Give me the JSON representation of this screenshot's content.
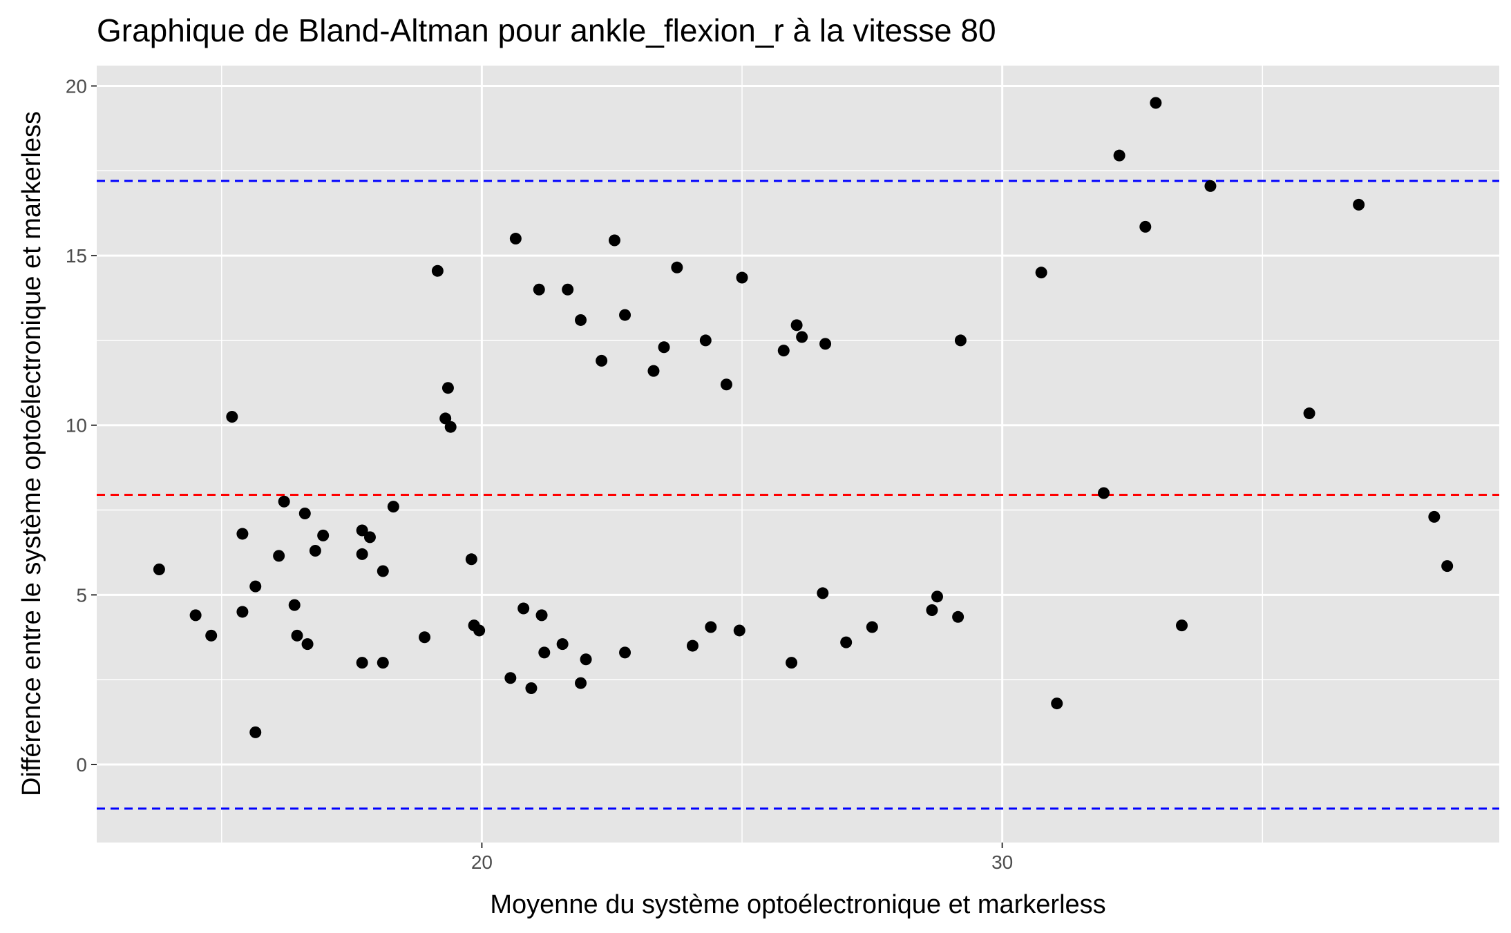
{
  "chart_data": {
    "type": "scatter",
    "title": "Graphique de Bland-Altman pour ankle_flexion_r à la vitesse 80",
    "xlabel": "Moyenne du système optoélectronique et markerless",
    "ylabel": "Différence entre le système optoélectronique et markerless",
    "xlim": [
      12.6,
      39.55
    ],
    "ylim": [
      -2.3,
      20.6
    ],
    "x_ticks": [
      20,
      30
    ],
    "x_tick_labels": [
      "20",
      "30"
    ],
    "y_ticks": [
      0,
      5,
      10,
      15,
      20
    ],
    "y_tick_labels": [
      "0",
      "5",
      "10",
      "15",
      "20"
    ],
    "grid": true,
    "legend": "none",
    "colors": {
      "panel": "#e5e5e5",
      "grid": "#ffffff",
      "points": "#000000",
      "mean_line": "#ff0000",
      "limit_lines": "#0000ff"
    },
    "mean_difference": 7.95,
    "limits_of_agreement": [
      17.2,
      -1.3
    ],
    "points": [
      {
        "x": 13.8,
        "y": 5.75
      },
      {
        "x": 14.5,
        "y": 4.4
      },
      {
        "x": 14.8,
        "y": 3.8
      },
      {
        "x": 15.2,
        "y": 10.25
      },
      {
        "x": 15.4,
        "y": 6.8
      },
      {
        "x": 15.4,
        "y": 4.5
      },
      {
        "x": 15.65,
        "y": 5.25
      },
      {
        "x": 15.65,
        "y": 0.95
      },
      {
        "x": 16.1,
        "y": 6.15
      },
      {
        "x": 16.2,
        "y": 7.75
      },
      {
        "x": 16.4,
        "y": 4.7
      },
      {
        "x": 16.45,
        "y": 3.8
      },
      {
        "x": 16.6,
        "y": 7.4
      },
      {
        "x": 16.65,
        "y": 3.55
      },
      {
        "x": 16.8,
        "y": 6.3
      },
      {
        "x": 16.95,
        "y": 6.75
      },
      {
        "x": 17.7,
        "y": 6.9
      },
      {
        "x": 17.7,
        "y": 6.2
      },
      {
        "x": 17.7,
        "y": 3.0
      },
      {
        "x": 17.85,
        "y": 6.7
      },
      {
        "x": 18.1,
        "y": 5.7
      },
      {
        "x": 18.1,
        "y": 3.0
      },
      {
        "x": 18.3,
        "y": 7.6
      },
      {
        "x": 18.9,
        "y": 3.75
      },
      {
        "x": 19.15,
        "y": 14.55
      },
      {
        "x": 19.3,
        "y": 10.2
      },
      {
        "x": 19.35,
        "y": 11.1
      },
      {
        "x": 19.4,
        "y": 9.95
      },
      {
        "x": 19.8,
        "y": 6.05
      },
      {
        "x": 19.85,
        "y": 4.1
      },
      {
        "x": 19.95,
        "y": 3.95
      },
      {
        "x": 20.55,
        "y": 2.55
      },
      {
        "x": 20.65,
        "y": 15.5
      },
      {
        "x": 20.8,
        "y": 4.6
      },
      {
        "x": 20.95,
        "y": 2.25
      },
      {
        "x": 21.1,
        "y": 14.0
      },
      {
        "x": 21.15,
        "y": 4.4
      },
      {
        "x": 21.2,
        "y": 3.3
      },
      {
        "x": 21.55,
        "y": 3.55
      },
      {
        "x": 21.65,
        "y": 14.0
      },
      {
        "x": 21.9,
        "y": 13.1
      },
      {
        "x": 21.9,
        "y": 2.4
      },
      {
        "x": 22.0,
        "y": 3.1
      },
      {
        "x": 22.3,
        "y": 11.9
      },
      {
        "x": 22.55,
        "y": 15.45
      },
      {
        "x": 22.75,
        "y": 13.25
      },
      {
        "x": 22.75,
        "y": 3.3
      },
      {
        "x": 23.3,
        "y": 11.6
      },
      {
        "x": 23.5,
        "y": 12.3
      },
      {
        "x": 23.75,
        "y": 14.65
      },
      {
        "x": 24.05,
        "y": 3.5
      },
      {
        "x": 24.3,
        "y": 12.5
      },
      {
        "x": 24.4,
        "y": 4.05
      },
      {
        "x": 24.7,
        "y": 11.2
      },
      {
        "x": 24.95,
        "y": 3.95
      },
      {
        "x": 25.0,
        "y": 14.35
      },
      {
        "x": 25.8,
        "y": 12.2
      },
      {
        "x": 25.95,
        "y": 3.0
      },
      {
        "x": 26.05,
        "y": 12.95
      },
      {
        "x": 26.15,
        "y": 12.6
      },
      {
        "x": 26.55,
        "y": 5.05
      },
      {
        "x": 26.6,
        "y": 12.4
      },
      {
        "x": 27.0,
        "y": 3.6
      },
      {
        "x": 27.5,
        "y": 4.05
      },
      {
        "x": 28.65,
        "y": 4.55
      },
      {
        "x": 28.75,
        "y": 4.95
      },
      {
        "x": 29.15,
        "y": 4.35
      },
      {
        "x": 29.2,
        "y": 12.5
      },
      {
        "x": 30.75,
        "y": 14.5
      },
      {
        "x": 31.05,
        "y": 1.8
      },
      {
        "x": 31.95,
        "y": 8.0
      },
      {
        "x": 32.25,
        "y": 17.95
      },
      {
        "x": 32.75,
        "y": 15.85
      },
      {
        "x": 32.95,
        "y": 19.5
      },
      {
        "x": 33.45,
        "y": 4.1
      },
      {
        "x": 34.0,
        "y": 17.05
      },
      {
        "x": 35.9,
        "y": 10.35
      },
      {
        "x": 36.85,
        "y": 16.5
      },
      {
        "x": 38.3,
        "y": 7.3
      },
      {
        "x": 38.55,
        "y": 5.85
      }
    ]
  }
}
